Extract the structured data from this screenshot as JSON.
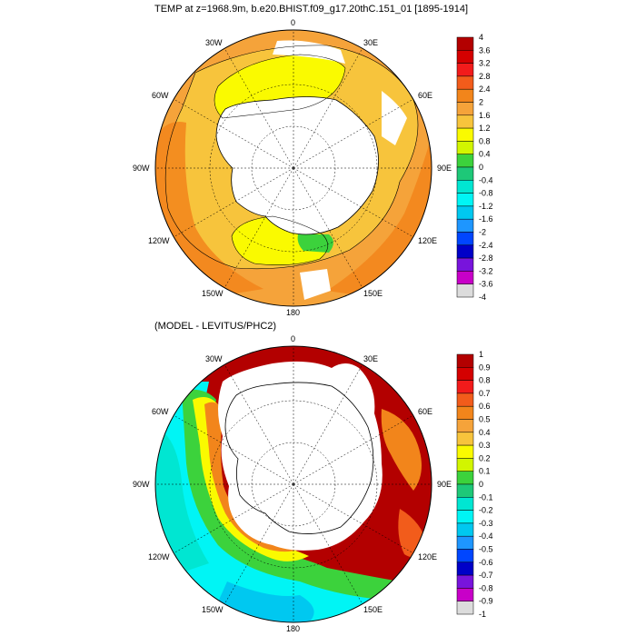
{
  "panels": [
    {
      "title": "TEMP at z=1968.9m, b.e20.BHIST.f09_g17.20thC.151_01 [1895-1914]",
      "lon_labels": [
        "0",
        "30E",
        "60E",
        "90E",
        "120E",
        "150E",
        "180",
        "150W",
        "120W",
        "90W",
        "60W",
        "30W"
      ],
      "colorbar_labels": [
        "4",
        "3.6",
        "3.2",
        "2.8",
        "2.4",
        "2",
        "1.6",
        "1.2",
        "0.8",
        "0.4",
        "0",
        "-0.4",
        "-0.8",
        "-1.2",
        "-1.6",
        "-2",
        "-2.4",
        "-2.8",
        "-3.2",
        "-3.6",
        "-4"
      ]
    },
    {
      "title": "(MODEL - LEVITUS/PHC2)",
      "lon_labels": [
        "0",
        "30E",
        "60E",
        "90E",
        "120E",
        "150E",
        "180",
        "150W",
        "120W",
        "90W",
        "60W",
        "30W"
      ],
      "colorbar_labels": [
        "1",
        "0.9",
        "0.8",
        "0.7",
        "0.6",
        "0.5",
        "0.4",
        "0.3",
        "0.2",
        "0.1",
        "0",
        "-0.1",
        "-0.2",
        "-0.3",
        "-0.4",
        "-0.5",
        "-0.6",
        "-0.7",
        "-0.8",
        "-0.9",
        "-1"
      ]
    }
  ],
  "colors": {
    "colorbar": [
      "#b30000",
      "#d40000",
      "#f21b1b",
      "#f25c1b",
      "#f2851b",
      "#f5a33a",
      "#f7c43c",
      "#fafa00",
      "#d2f500",
      "#3cd23c",
      "#1ec878",
      "#00e6d2",
      "#00f5f5",
      "#00c8f0",
      "#1e96ff",
      "#0046ff",
      "#0000c8",
      "#7814dc",
      "#c800c8",
      "#dcdcdc",
      "#787878"
    ]
  }
}
